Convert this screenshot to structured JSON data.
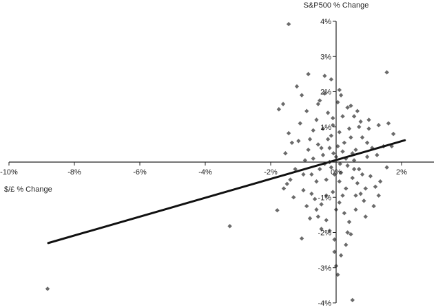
{
  "chart_data": {
    "type": "scatter",
    "title": "",
    "xlabel": "$/£ % Change",
    "ylabel": "S&P500 % Change",
    "xlim": [
      -10,
      2.5
    ],
    "ylim": [
      -4,
      4
    ],
    "x_ticks": [
      -10,
      -8,
      -6,
      -4,
      -2,
      0,
      2
    ],
    "y_ticks": [
      -4,
      -3,
      -2,
      -1,
      1,
      2,
      3,
      4
    ],
    "x_tick_labels": [
      "-10%",
      "-8%",
      "-6%",
      "-4%",
      "-2%",
      "0%",
      "2%"
    ],
    "y_tick_labels": [
      "-4%",
      "-3%",
      "-2%",
      "-1%",
      "1%",
      "2%",
      "3%",
      "4%"
    ],
    "grid": false,
    "legend": "none",
    "marker_color": "#6b6b6b",
    "line_color": "#111111",
    "trendline": {
      "x": [
        -8.8,
        2.1
      ],
      "y": [
        -2.3,
        0.62
      ]
    },
    "points": [
      [
        -8.82,
        -3.6
      ],
      [
        -3.25,
        -1.82
      ],
      [
        -1.45,
        3.92
      ],
      [
        -1.05,
        -2.17
      ],
      [
        -1.75,
        1.5
      ],
      [
        -1.62,
        1.65
      ],
      [
        -1.8,
        -1.37
      ],
      [
        -1.6,
        -0.75
      ],
      [
        -1.5,
        -0.62
      ],
      [
        -1.45,
        0.82
      ],
      [
        -1.35,
        0.55
      ],
      [
        -1.3,
        -1.0
      ],
      [
        -1.2,
        2.15
      ],
      [
        -1.05,
        1.9
      ],
      [
        -0.85,
        2.5
      ],
      [
        -0.55,
        1.65
      ],
      [
        -0.35,
        2.45
      ],
      [
        -0.15,
        2.35
      ],
      [
        0.15,
        1.9
      ],
      [
        0.45,
        1.6
      ],
      [
        0.55,
        1.3
      ],
      [
        0.75,
        1.15
      ],
      [
        1.0,
        1.2
      ],
      [
        1.3,
        1.05
      ],
      [
        1.55,
        2.55
      ],
      [
        1.6,
        1.1
      ],
      [
        1.75,
        0.8
      ],
      [
        1.55,
        -0.15
      ],
      [
        1.35,
        -0.55
      ],
      [
        1.3,
        -0.95
      ],
      [
        1.15,
        -1.25
      ],
      [
        1.05,
        -0.4
      ],
      [
        0.9,
        -1.55
      ],
      [
        0.75,
        -0.9
      ],
      [
        0.6,
        -1.35
      ],
      [
        0.45,
        -2.05
      ],
      [
        0.3,
        -2.35
      ],
      [
        0.15,
        -2.65
      ],
      [
        0.0,
        -2.95
      ],
      [
        -0.05,
        -2.55
      ],
      [
        0.05,
        -3.2
      ],
      [
        0.5,
        -3.92
      ],
      [
        -0.3,
        -1.65
      ],
      [
        -0.45,
        -1.9
      ],
      [
        -0.6,
        -1.35
      ],
      [
        -0.75,
        -0.9
      ],
      [
        -0.9,
        -1.25
      ],
      [
        -1.0,
        -0.35
      ],
      [
        -0.85,
        0.35
      ],
      [
        -0.7,
        0.9
      ],
      [
        -0.55,
        0.5
      ],
      [
        -0.4,
        0.95
      ],
      [
        -0.25,
        0.65
      ],
      [
        -0.1,
        1.05
      ],
      [
        0.1,
        0.85
      ],
      [
        0.25,
        0.55
      ],
      [
        0.4,
        0.95
      ],
      [
        0.6,
        0.35
      ],
      [
        0.8,
        0.7
      ],
      [
        0.95,
        0.15
      ],
      [
        0.7,
        -0.2
      ],
      [
        0.5,
        -0.45
      ],
      [
        0.3,
        -0.75
      ],
      [
        0.1,
        -0.55
      ],
      [
        -0.1,
        -0.85
      ],
      [
        -0.3,
        -0.5
      ],
      [
        -0.5,
        -0.2
      ],
      [
        -0.7,
        0.1
      ],
      [
        -0.4,
        0.2
      ],
      [
        -0.2,
        0.4
      ],
      [
        0.0,
        0.15
      ],
      [
        0.2,
        0.3
      ],
      [
        0.35,
        -0.1
      ],
      [
        -0.15,
        -0.15
      ],
      [
        0.15,
        -0.3
      ],
      [
        -0.35,
        -0.05
      ],
      [
        0.55,
        0.05
      ],
      [
        -0.6,
        -0.55
      ],
      [
        0.65,
        -0.6
      ],
      [
        -0.25,
        1.4
      ],
      [
        0.2,
        1.3
      ],
      [
        -0.6,
        1.2
      ],
      [
        0.85,
        -1.1
      ],
      [
        -0.8,
        -1.6
      ],
      [
        0.4,
        -1.7
      ],
      [
        -0.2,
        -1.95
      ],
      [
        0.1,
        -1.15
      ],
      [
        -0.45,
        -1.2
      ],
      [
        1.1,
        0.4
      ],
      [
        -1.15,
        0.6
      ],
      [
        1.25,
        0.2
      ],
      [
        -1.25,
        -0.2
      ],
      [
        0.95,
        0.55
      ],
      [
        -0.95,
        0.05
      ],
      [
        0.05,
        1.7
      ],
      [
        -0.05,
        -2.2
      ],
      [
        0.35,
        1.55
      ],
      [
        -0.5,
        1.75
      ],
      [
        0.25,
        -1.45
      ],
      [
        -0.15,
        0.75
      ],
      [
        0.7,
        1.0
      ],
      [
        -0.65,
        -1.05
      ],
      [
        1.45,
        0.45
      ],
      [
        -1.4,
        -0.5
      ],
      [
        0.45,
        0.7
      ],
      [
        -0.3,
        -0.95
      ],
      [
        0.05,
        0.45
      ],
      [
        -0.05,
        -0.35
      ],
      [
        0.6,
        -0.95
      ],
      [
        -0.8,
        0.65
      ],
      [
        1.2,
        -0.7
      ],
      [
        -1.1,
        1.1
      ],
      [
        0.3,
        0.1
      ],
      [
        -0.2,
        0.0
      ],
      [
        0.12,
        -0.05
      ],
      [
        -0.08,
        0.25
      ],
      [
        0.5,
        0.25
      ],
      [
        -0.45,
        0.4
      ],
      [
        0.8,
        -0.35
      ],
      [
        -0.75,
        -0.35
      ],
      [
        0.2,
        -0.95
      ],
      [
        -0.1,
        1.25
      ],
      [
        0.65,
        1.45
      ],
      [
        -0.9,
        1.45
      ],
      [
        1.7,
        0.45
      ],
      [
        -1.55,
        0.25
      ],
      [
        0.9,
        -0.75
      ],
      [
        -0.55,
        -1.55
      ],
      [
        0.0,
        -1.35
      ],
      [
        0.35,
        -2.0
      ],
      [
        -0.35,
        1.95
      ],
      [
        0.1,
        2.05
      ],
      [
        1.0,
        0.95
      ],
      [
        -1.0,
        -0.8
      ],
      [
        0.55,
        -0.2
      ]
    ]
  }
}
